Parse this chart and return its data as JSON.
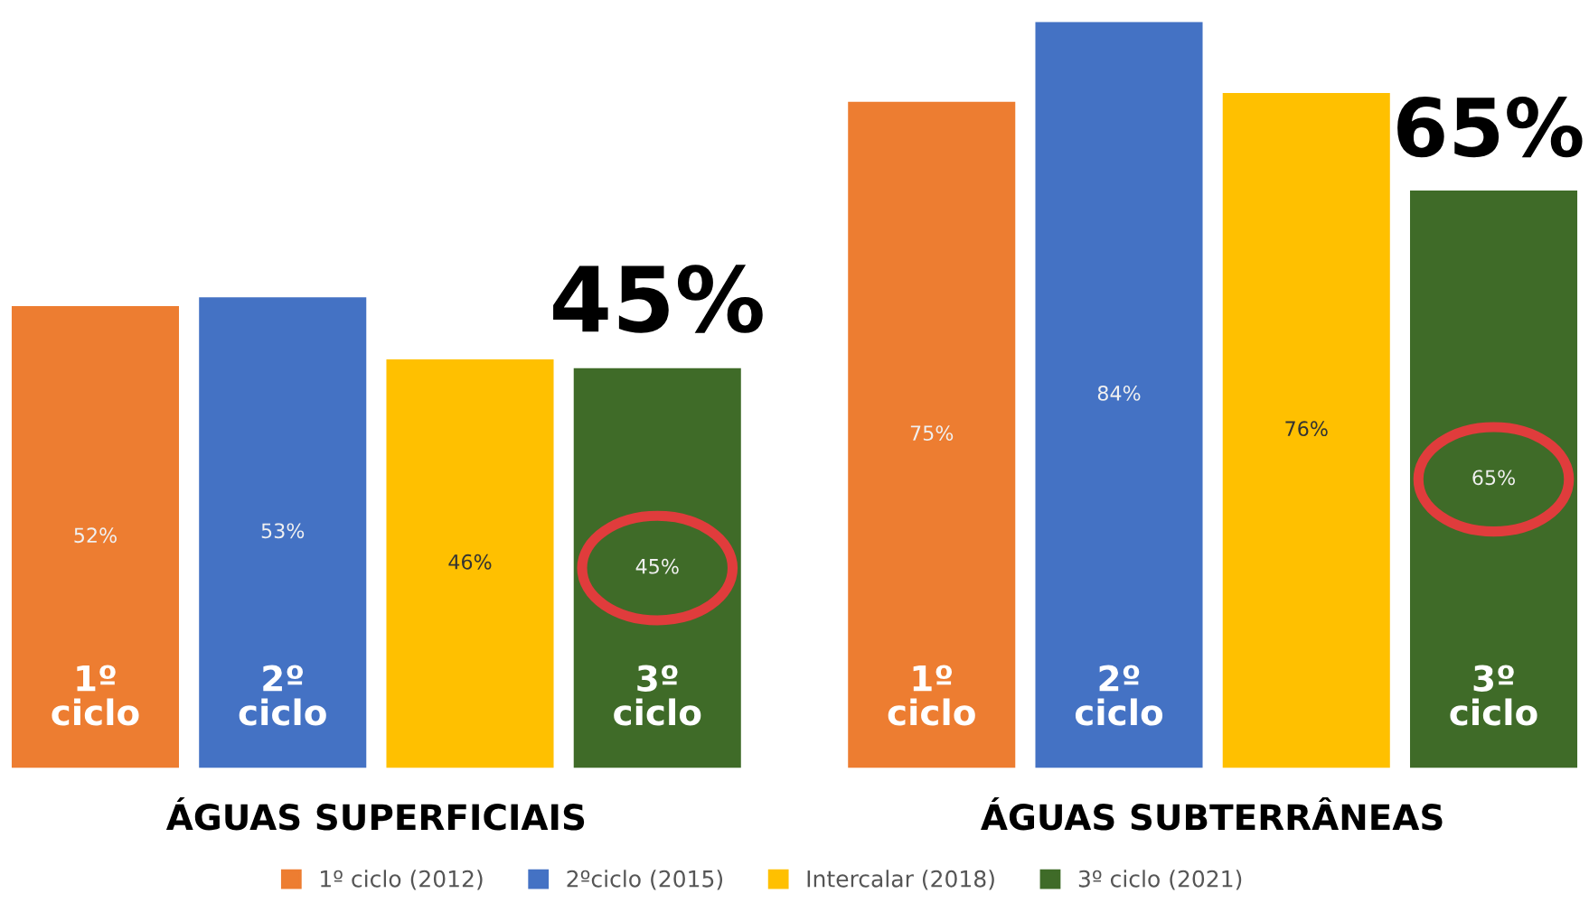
{
  "chart_data": {
    "type": "bar",
    "categories": [
      "ÁGUAS SUPERFICIAIS",
      "ÁGUAS SUBTERRÂNEAS"
    ],
    "series": [
      {
        "name": "1º ciclo (2012)",
        "color": "#ed7d31",
        "values": [
          52,
          75
        ],
        "value_labels": [
          "52%",
          "75%"
        ]
      },
      {
        "name": "2ºciclo (2015)",
        "color": "#4472c4",
        "values": [
          53,
          84
        ],
        "value_labels": [
          "53%",
          "84%"
        ]
      },
      {
        "name": "Intercalar (2018)",
        "color": "#ffc000",
        "values": [
          46,
          76
        ],
        "value_labels": [
          "46%",
          "76%"
        ]
      },
      {
        "name": "3º ciclo (2021)",
        "color": "#3f6b28",
        "values": [
          45,
          65
        ],
        "value_labels": [
          "45%",
          "65%"
        ]
      }
    ],
    "legend": "bottom",
    "annotations": [
      {
        "text": "45%",
        "x": "ÁGUAS SUPERFICIAIS",
        "y": 45
      },
      {
        "text": "65%",
        "x": "ÁGUAS SUBTERRÂNEAS",
        "y": 65
      },
      "1º\nciclo",
      "2º\nciclo",
      "3º\nciclo",
      "1º\nciclo",
      "2º\nciclo",
      "3º\nciclo"
    ]
  }
}
